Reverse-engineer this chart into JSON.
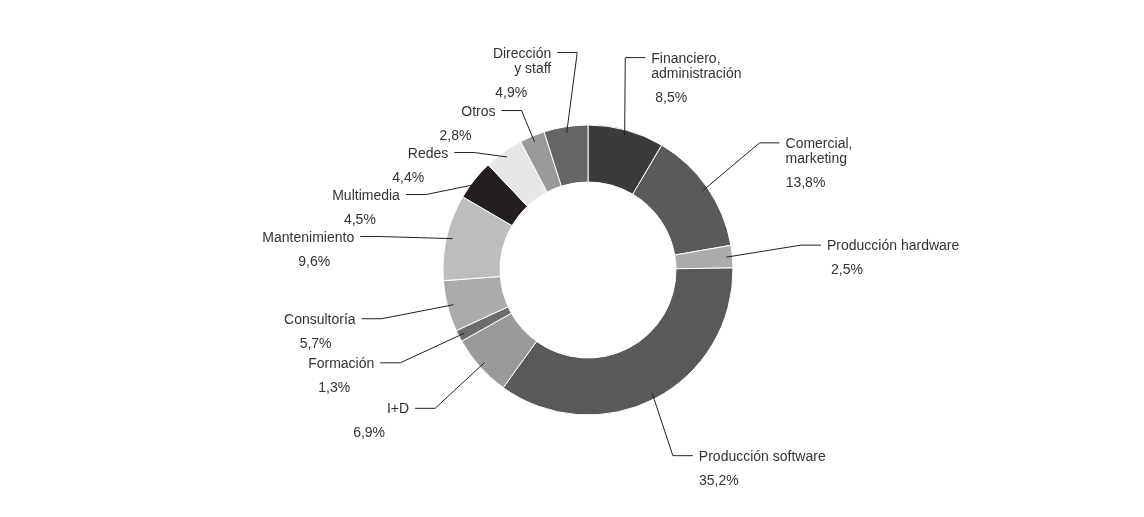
{
  "chart_data": {
    "type": "donut",
    "categories": [
      "Financiero,\nadministración",
      "Comercial,\nmarketing",
      "Producción hardware",
      "Producción software",
      "I+D",
      "Formación",
      "Consultoría",
      "Mantenimiento",
      "Multimedia",
      "Redes",
      "Otros",
      "Dirección\ny staff"
    ],
    "values": [
      8.5,
      13.8,
      2.5,
      35.2,
      6.9,
      1.3,
      5.7,
      9.6,
      4.5,
      4.4,
      2.8,
      4.9
    ],
    "colors": [
      "#3b3b3b",
      "#5a5a5a",
      "#ababab",
      "#58595b",
      "#9a9a9a",
      "#6d6d6d",
      "#ababab",
      "#bdbdbd",
      "#231f20",
      "#e6e6e6",
      "#9a9a9a",
      "#666666"
    ],
    "value_labels": [
      "8,5%",
      "13,8%",
      "2,5%",
      "35,2%",
      "6,9%",
      "1,3%",
      "5,7%",
      "9,6%",
      "4,5%",
      "4,4%",
      "2,8%",
      "4,9%"
    ]
  }
}
